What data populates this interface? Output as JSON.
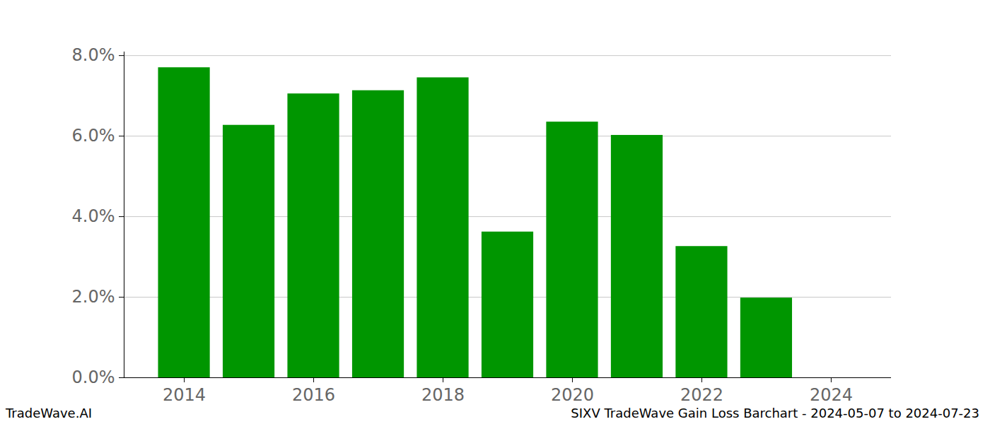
{
  "chart_data": {
    "type": "bar",
    "title": "SIXV TradeWave Gain Loss Barchart - 2024-05-07 to 2024-07-23",
    "annotations": [
      "TradeWave.AI"
    ],
    "x": [
      2014,
      2015,
      2016,
      2017,
      2018,
      2019,
      2020,
      2021,
      2022,
      2023
    ],
    "values": [
      7.7,
      6.27,
      7.05,
      7.13,
      7.45,
      3.62,
      6.35,
      6.02,
      3.26,
      1.98
    ],
    "color": "#009600",
    "xlim": [
      2013.07,
      2024.93
    ],
    "xticks": [
      2014,
      2016,
      2018,
      2020,
      2022,
      2024
    ],
    "ylim": [
      0,
      8.09
    ],
    "yticks": [
      {
        "value": 0,
        "label": "0.0%"
      },
      {
        "value": 2,
        "label": "2.0%"
      },
      {
        "value": 4,
        "label": "4.0%"
      },
      {
        "value": 6,
        "label": "6.0%"
      },
      {
        "value": 8,
        "label": "8.0%"
      }
    ],
    "grid": true
  }
}
